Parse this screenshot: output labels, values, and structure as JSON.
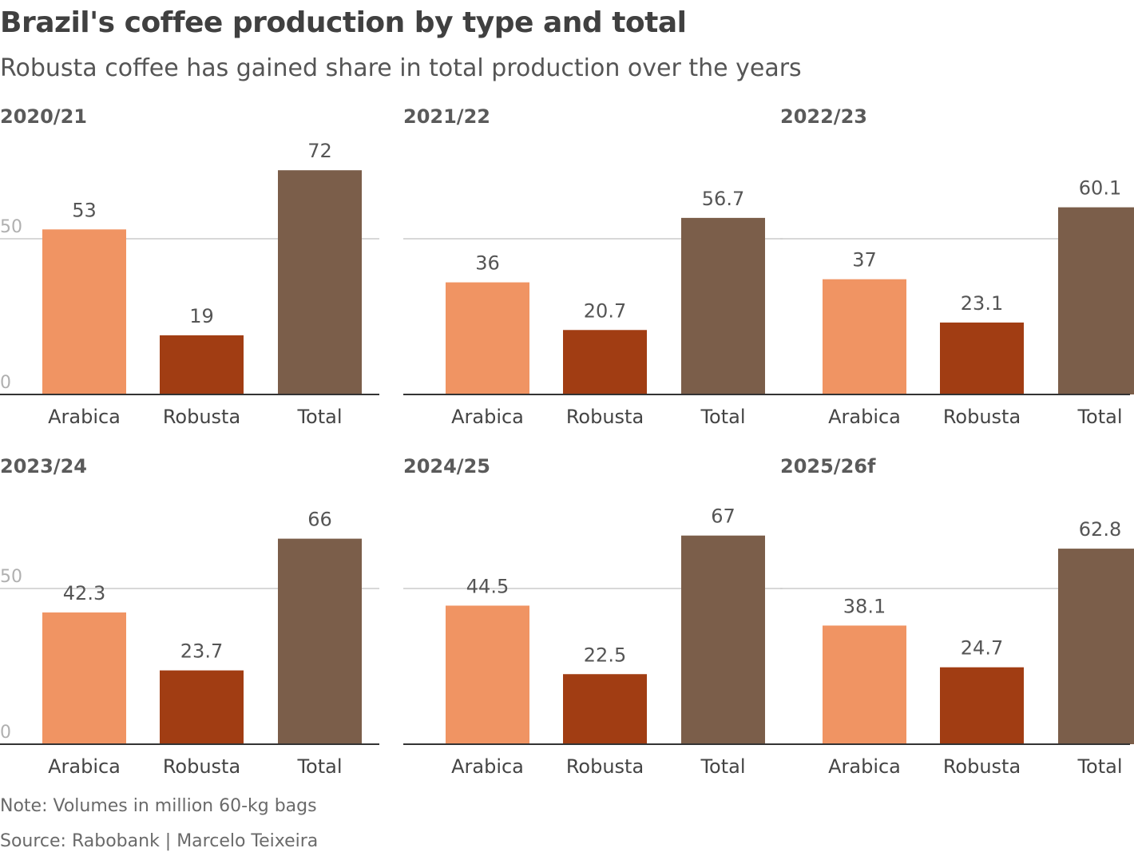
{
  "title": "Brazil's coffee production by type and total",
  "subtitle": "Robusta coffee has gained share in total production over the years",
  "note": "Note: Volumes in million 60-kg bags",
  "source": "Source: Rabobank | Marcelo Teixeira",
  "colors": {
    "Arabica": "#f09463",
    "Robusta": "#a13d13",
    "Total": "#7b5e4a",
    "gridline": "#cccccc",
    "baseline": "#333333"
  },
  "chart_data": [
    {
      "type": "bar",
      "title": "2020/21",
      "categories": [
        "Arabica",
        "Robusta",
        "Total"
      ],
      "values": [
        53,
        19,
        72
      ],
      "labels": [
        "53",
        "19",
        "72"
      ],
      "yticks": [
        "0",
        "50"
      ],
      "ylim": [
        0,
        72
      ]
    },
    {
      "type": "bar",
      "title": "2021/22",
      "categories": [
        "Arabica",
        "Robusta",
        "Total"
      ],
      "values": [
        36,
        20.7,
        56.7
      ],
      "labels": [
        "36",
        "20.7",
        "56.7"
      ],
      "yticks": [
        "",
        ""
      ],
      "ylim": [
        0,
        72
      ]
    },
    {
      "type": "bar",
      "title": "2022/23",
      "categories": [
        "Arabica",
        "Robusta",
        "Total"
      ],
      "values": [
        37,
        23.1,
        60.1
      ],
      "labels": [
        "37",
        "23.1",
        "60.1"
      ],
      "yticks": [
        "",
        ""
      ],
      "ylim": [
        0,
        72
      ]
    },
    {
      "type": "bar",
      "title": "2023/24",
      "categories": [
        "Arabica",
        "Robusta",
        "Total"
      ],
      "values": [
        42.3,
        23.7,
        66
      ],
      "labels": [
        "42.3",
        "23.7",
        "66"
      ],
      "yticks": [
        "0",
        "50"
      ],
      "ylim": [
        0,
        72
      ]
    },
    {
      "type": "bar",
      "title": "2024/25",
      "categories": [
        "Arabica",
        "Robusta",
        "Total"
      ],
      "values": [
        44.5,
        22.5,
        67
      ],
      "labels": [
        "44.5",
        "22.5",
        "67"
      ],
      "yticks": [
        "",
        ""
      ],
      "ylim": [
        0,
        72
      ]
    },
    {
      "type": "bar",
      "title": "2025/26f",
      "categories": [
        "Arabica",
        "Robusta",
        "Total"
      ],
      "values": [
        38.1,
        24.7,
        62.8
      ],
      "labels": [
        "38.1",
        "24.7",
        "62.8"
      ],
      "yticks": [
        "",
        ""
      ],
      "ylim": [
        0,
        72
      ]
    }
  ]
}
